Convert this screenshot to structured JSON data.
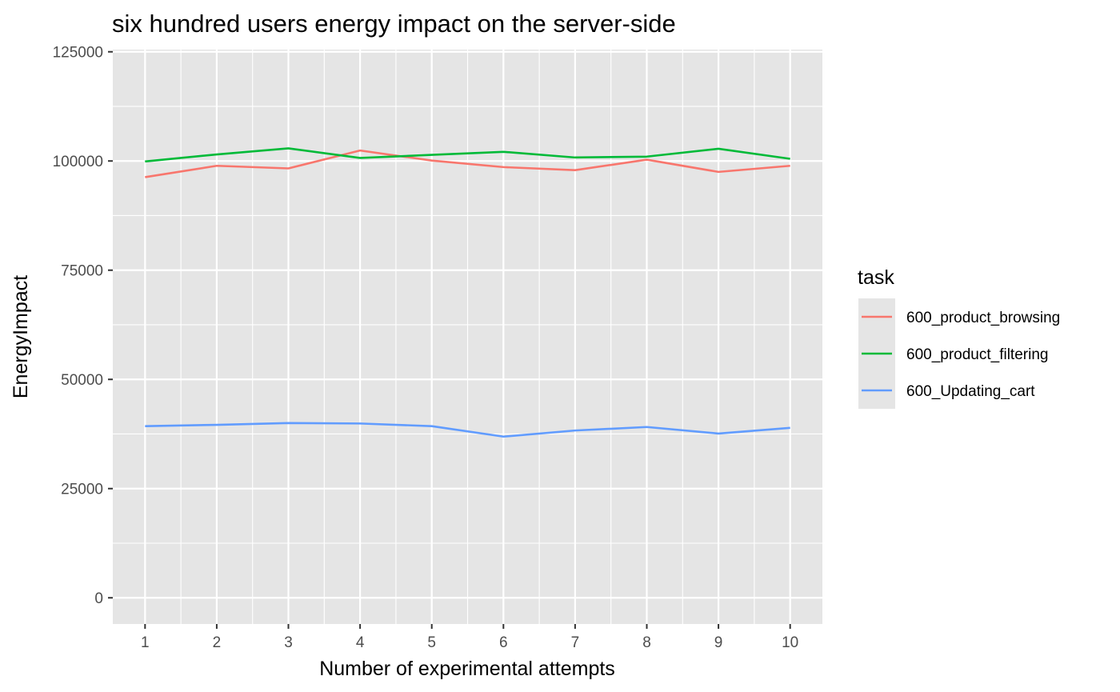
{
  "chart_data": {
    "type": "line",
    "title": "six hundred users energy impact on the server-side",
    "xlabel": "Number of experimental attempts",
    "ylabel": "EnergyImpact",
    "x": [
      1,
      2,
      3,
      4,
      5,
      6,
      7,
      8,
      9,
      10
    ],
    "x_ticks": [
      "1",
      "2",
      "3",
      "4",
      "5",
      "6",
      "7",
      "8",
      "9",
      "10"
    ],
    "y_ticks": [
      "0",
      "25000",
      "50000",
      "75000",
      "100000",
      "125000"
    ],
    "y_tick_values": [
      0,
      25000,
      50000,
      75000,
      100000,
      125000
    ],
    "xlim": [
      0.55,
      10.45
    ],
    "ylim": [
      -6000,
      125500
    ],
    "grid": true,
    "legend": {
      "title": "task",
      "position": "right"
    },
    "series": [
      {
        "name": "600_product_browsing",
        "color": "#F8766D",
        "values": [
          96300,
          98900,
          98300,
          102400,
          100100,
          98600,
          97900,
          100300,
          97500,
          98900
        ]
      },
      {
        "name": "600_product_filtering",
        "color": "#00BA38",
        "values": [
          99900,
          101500,
          102900,
          100700,
          101400,
          102100,
          100800,
          101000,
          102800,
          100500
        ]
      },
      {
        "name": "600_Updating_cart",
        "color": "#619CFF",
        "values": [
          39300,
          39600,
          40000,
          39900,
          39300,
          36900,
          38300,
          39100,
          37600,
          38900
        ]
      }
    ]
  }
}
